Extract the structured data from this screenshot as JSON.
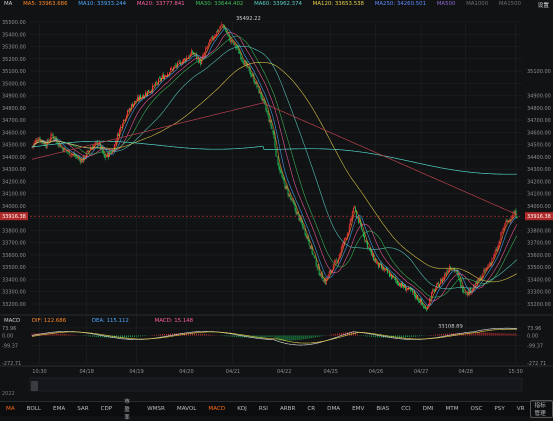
{
  "ma_legend": {
    "indicator": "MA",
    "items": [
      {
        "label": "MA5: 33963.686",
        "color": "#ff8a2a"
      },
      {
        "label": "MA10: 33933.244",
        "color": "#4aa8ff"
      },
      {
        "label": "MA20: 33777.841",
        "color": "#ff5fa2"
      },
      {
        "label": "MA30: 33644.402",
        "color": "#3fbf5a"
      },
      {
        "label": "MA60: 33962.374",
        "color": "#5ad1c4"
      },
      {
        "label": "MA120: 33653.538",
        "color": "#e9d24a"
      },
      {
        "label": "MA250: 34260.501",
        "color": "#5e8cff"
      },
      {
        "label": "MA500",
        "color": "#8f6bd6"
      },
      {
        "label": "MA1000",
        "color": "#6b6f77"
      },
      {
        "label": "MA1500",
        "color": "#6b6f77"
      }
    ],
    "settings_label": "设置"
  },
  "price_axis": {
    "labels": [
      "35500.00",
      "35400.00",
      "35300.00",
      "35200.00",
      "35100.00",
      "35000.00",
      "34900.00",
      "34800.00",
      "34700.00",
      "34600.00",
      "34500.00",
      "34400.00",
      "34300.00",
      "34200.00",
      "34100.00",
      "34000.00",
      "33900.00",
      "33800.00",
      "33700.00",
      "33600.00",
      "33500.00",
      "33400.00",
      "33300.00",
      "33200.00"
    ],
    "ylim": [
      33200,
      35500
    ],
    "right_labels": [
      "35100.00",
      "34900.00",
      "34800.00",
      "34700.00",
      "34600.00",
      "34500.00",
      "34400.00",
      "34300.00",
      "34200.00",
      "34100.00",
      "34000.00",
      "33800.00",
      "33700.00",
      "33600.00",
      "33500.00",
      "33400.00",
      "33300.00",
      "33200.00"
    ],
    "current_price": "33916.38",
    "current_value": 33916.38,
    "high_annotation": "35492.22",
    "high_value": 35492.22,
    "low_annotation": "33108.89",
    "low_value": 33108.89
  },
  "macd_legend": {
    "indicator": "MACD",
    "items": [
      {
        "label": "DIF: 122.686",
        "color": "#ff8a2a"
      },
      {
        "label": "DEA: 115.112",
        "color": "#4aa8ff"
      },
      {
        "label": "MACD: 15.148",
        "color": "#ff5fa2"
      }
    ]
  },
  "macd_axis": {
    "labels": [
      "73.96",
      "0.00",
      "-99.37",
      "-272.71"
    ],
    "ylim": [
      -272.71,
      73.96
    ]
  },
  "time_axis": {
    "labels": [
      "10:30",
      "04/18",
      "04/19",
      "04/20",
      "04/21",
      "04/22",
      "04/25",
      "04/26",
      "04/27",
      "04/28",
      "15:30"
    ]
  },
  "year_label": "2022",
  "toolbar": {
    "items": [
      "MA",
      "BOLL",
      "EMA",
      "SAR",
      "CDP",
      "市盈率",
      "WMSR",
      "MAVOL",
      "MACD",
      "KDJ",
      "RSI",
      "ARBR",
      "CR",
      "DMA",
      "EMV",
      "BIAS",
      "CCI",
      "DMI",
      "MTM",
      "OSC",
      "PSY",
      "VR",
      "指标管理"
    ],
    "active": [
      "MA",
      "MACD"
    ]
  },
  "colors": {
    "up": "#ff3b3b",
    "down": "#22c55e",
    "grid": "#1f2126",
    "bg": "#111214",
    "price_line": "#ff3b3b"
  }
}
